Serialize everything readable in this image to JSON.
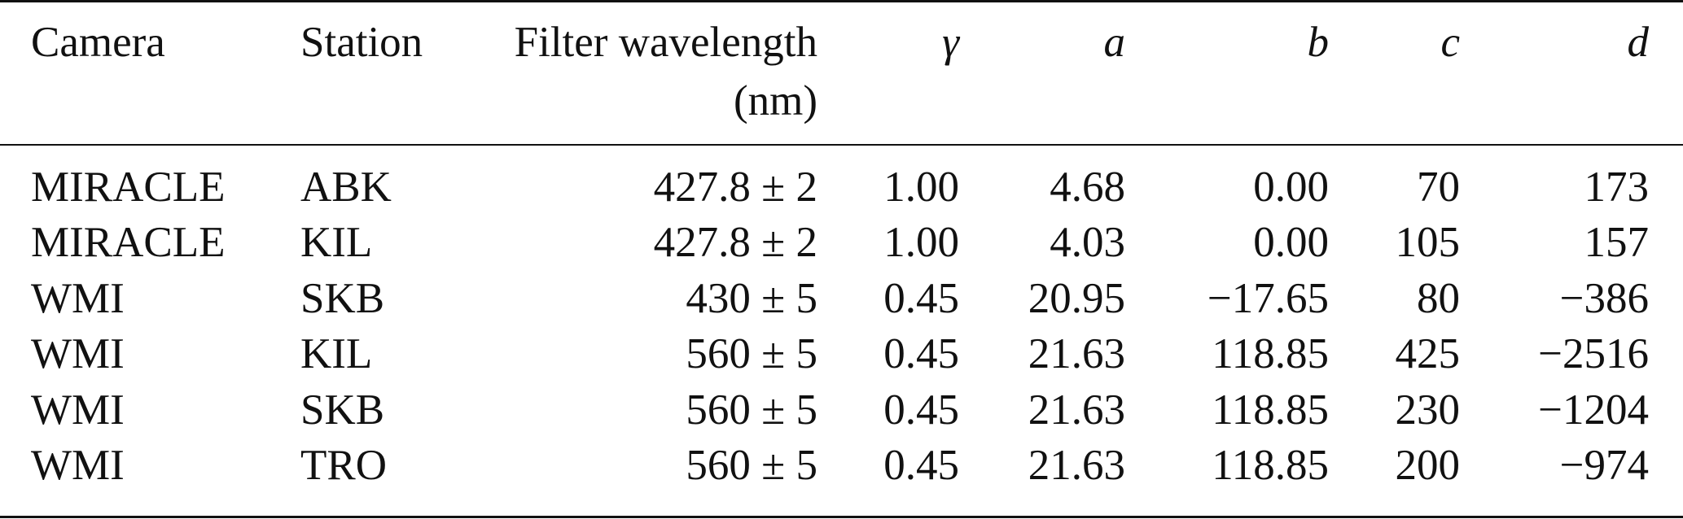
{
  "table": {
    "headers": {
      "camera": "Camera",
      "station": "Station",
      "filter_line1": "Filter wavelength",
      "filter_line2": "(nm)",
      "gamma": "γ",
      "a": "a",
      "b": "b",
      "c": "c",
      "d": "d"
    },
    "rows": [
      {
        "camera": "MIRACLE",
        "station": "ABK",
        "filter": "427.8 ± 2",
        "gamma": "1.00",
        "a": "4.68",
        "b": "0.00",
        "c": "70",
        "d": "173"
      },
      {
        "camera": "MIRACLE",
        "station": "KIL",
        "filter": "427.8 ± 2",
        "gamma": "1.00",
        "a": "4.03",
        "b": "0.00",
        "c": "105",
        "d": "157"
      },
      {
        "camera": "WMI",
        "station": "SKB",
        "filter": "430 ± 5",
        "gamma": "0.45",
        "a": "20.95",
        "b": "−17.65",
        "c": "80",
        "d": "−386"
      },
      {
        "camera": "WMI",
        "station": "KIL",
        "filter": "560 ± 5",
        "gamma": "0.45",
        "a": "21.63",
        "b": "118.85",
        "c": "425",
        "d": "−2516"
      },
      {
        "camera": "WMI",
        "station": "SKB",
        "filter": "560 ± 5",
        "gamma": "0.45",
        "a": "21.63",
        "b": "118.85",
        "c": "230",
        "d": "−1204"
      },
      {
        "camera": "WMI",
        "station": "TRO",
        "filter": "560 ± 5",
        "gamma": "0.45",
        "a": "21.63",
        "b": "118.85",
        "c": "200",
        "d": "−974"
      }
    ]
  }
}
